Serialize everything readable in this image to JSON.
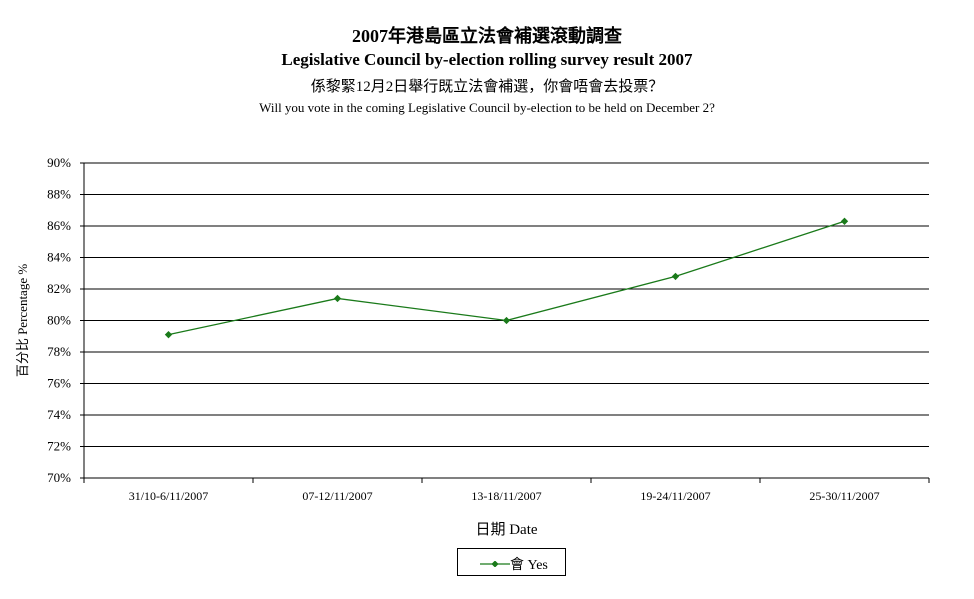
{
  "chart_data": {
    "type": "line",
    "title": "2007年港島區立法會補選滾動調查",
    "subtitle": "Legislative Council by-election rolling survey result 2007",
    "question_zh": "係黎緊12月2日舉行既立法會補選，你會唔會去投票？",
    "question_en": "Will you vote in the coming Legislative Council by-election to be held on December 2?",
    "xlabel": "日期 Date",
    "ylabel": "百分比 Percentage %",
    "categories": [
      "31/10-6/11/2007",
      "07-12/11/2007",
      "13-18/11/2007",
      "19-24/11/2007",
      "25-30/11/2007"
    ],
    "series": [
      {
        "name": "會 Yes",
        "values": [
          79.1,
          81.4,
          80.0,
          82.8,
          86.3
        ]
      }
    ],
    "ylim": [
      70,
      90
    ],
    "yticks": [
      70,
      72,
      74,
      76,
      78,
      80,
      82,
      84,
      86,
      88,
      90
    ],
    "ytick_labels": [
      "70%",
      "72%",
      "74%",
      "76%",
      "78%",
      "80%",
      "82%",
      "84%",
      "86%",
      "88%",
      "90%"
    ],
    "grid": "horizontal",
    "legend_position": "bottom-center",
    "colors": {
      "line": "#1a7a1a",
      "grid": "#000000"
    }
  }
}
